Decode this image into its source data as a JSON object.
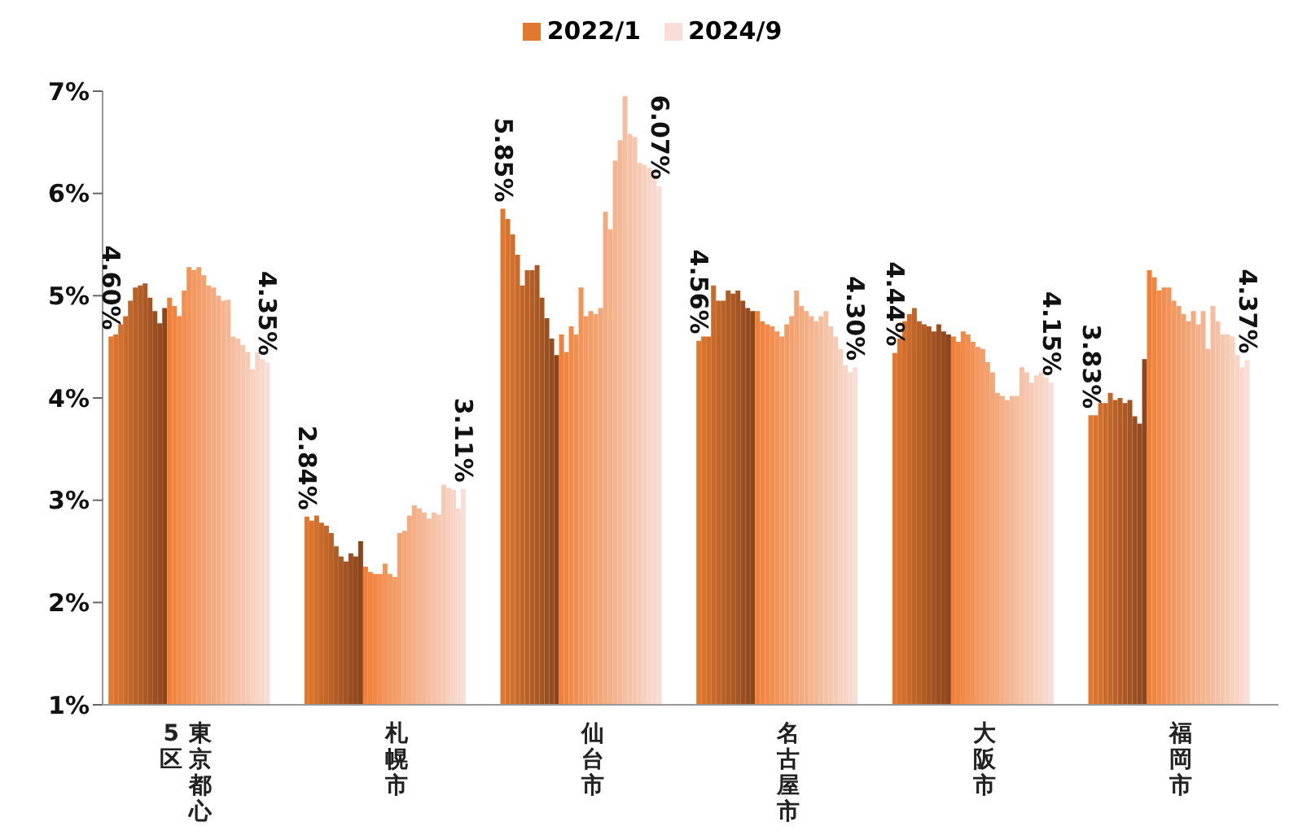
{
  "chart_data": {
    "type": "bar",
    "categories": [
      "東京都心5区",
      "札幌市",
      "仙台市",
      "名古屋市",
      "大阪市",
      "福岡市"
    ],
    "ylim": [
      1,
      7
    ],
    "yticks": [
      {
        "value": 1,
        "label": "1%"
      },
      {
        "value": 2,
        "label": "2%"
      },
      {
        "value": 3,
        "label": "3%"
      },
      {
        "value": 4,
        "label": "4%"
      },
      {
        "value": 5,
        "label": "5%"
      },
      {
        "value": 6,
        "label": "6%"
      },
      {
        "value": 7,
        "label": "7%"
      }
    ],
    "legend": "top",
    "series": [
      {
        "name": "2022/1",
        "color": "#e07830",
        "values": [
          4.6,
          2.84,
          5.85,
          4.56,
          4.44,
          3.83
        ],
        "value_labels": [
          "4.60%",
          "2.84%",
          "5.85%",
          "4.56%",
          "4.44%",
          "3.83%"
        ]
      },
      {
        "color": "#d8732e",
        "values": [
          4.62,
          2.8,
          5.75,
          4.6,
          4.58,
          3.83
        ]
      },
      {
        "color": "#d16f2c",
        "values": [
          4.72,
          2.85,
          5.6,
          4.6,
          4.75,
          3.95
        ]
      },
      {
        "color": "#c96a2b",
        "values": [
          4.8,
          2.78,
          5.4,
          5.1,
          4.82,
          3.95
        ]
      },
      {
        "color": "#c16629",
        "values": [
          4.95,
          2.75,
          5.1,
          4.95,
          4.88,
          4.05
        ]
      },
      {
        "color": "#ba6128",
        "values": [
          5.08,
          2.68,
          5.25,
          4.95,
          4.75,
          3.98
        ]
      },
      {
        "color": "#b25d26",
        "values": [
          5.1,
          2.55,
          5.25,
          5.05,
          4.72,
          4.0
        ]
      },
      {
        "color": "#ab5824",
        "values": [
          5.12,
          2.45,
          5.3,
          5.02,
          4.7,
          3.95
        ]
      },
      {
        "color": "#a35423",
        "values": [
          4.98,
          2.4,
          4.98,
          5.05,
          4.65,
          3.98
        ]
      },
      {
        "color": "#9b4f21",
        "values": [
          4.85,
          2.48,
          4.78,
          4.95,
          4.72,
          3.82
        ]
      },
      {
        "color": "#944b20",
        "values": [
          4.73,
          2.45,
          4.58,
          4.88,
          4.65,
          3.75
        ]
      },
      {
        "color": "#8c461e",
        "values": [
          4.88,
          2.6,
          4.42,
          4.85,
          4.62,
          4.38
        ]
      },
      {
        "color": "#f08038",
        "values": [
          4.98,
          2.35,
          4.62,
          4.85,
          4.6,
          5.25
        ]
      },
      {
        "color": "#f08540",
        "values": [
          4.9,
          2.3,
          4.45,
          4.75,
          4.55,
          5.18
        ]
      },
      {
        "color": "#f18948",
        "values": [
          4.8,
          2.28,
          4.7,
          4.72,
          4.65,
          5.05
        ]
      },
      {
        "color": "#f18e50",
        "values": [
          5.05,
          2.28,
          4.62,
          4.7,
          4.62,
          5.08
        ]
      },
      {
        "color": "#f29358",
        "values": [
          5.28,
          2.38,
          5.08,
          4.65,
          4.55,
          5.08
        ]
      },
      {
        "color": "#f29860",
        "values": [
          5.25,
          2.28,
          4.8,
          4.6,
          4.5,
          4.95
        ]
      },
      {
        "color": "#f29c67",
        "values": [
          5.28,
          2.25,
          4.85,
          4.72,
          4.48,
          4.9
        ]
      },
      {
        "color": "#f3a16f",
        "values": [
          5.2,
          2.68,
          4.82,
          4.8,
          4.35,
          4.82
        ]
      },
      {
        "color": "#f3a677",
        "values": [
          5.1,
          2.7,
          4.88,
          5.05,
          4.25,
          4.75
        ]
      },
      {
        "color": "#f4aa7f",
        "values": [
          5.08,
          2.85,
          5.82,
          4.9,
          4.05,
          4.85
        ]
      },
      {
        "color": "#f4af87",
        "values": [
          5.0,
          2.95,
          5.65,
          4.85,
          4.02,
          4.72
        ]
      },
      {
        "color": "#f4b48f",
        "values": [
          4.95,
          2.92,
          6.32,
          4.8,
          3.98,
          4.85
        ]
      },
      {
        "color": "#f5b897",
        "values": [
          4.96,
          2.88,
          6.52,
          4.75,
          4.02,
          4.48
        ]
      },
      {
        "color": "#f5bd9f",
        "values": [
          4.6,
          2.82,
          6.95,
          4.8,
          4.02,
          4.9
        ]
      },
      {
        "color": "#f6c2a7",
        "values": [
          4.58,
          2.88,
          6.58,
          4.85,
          4.3,
          4.75
        ]
      },
      {
        "color": "#f6c6ae",
        "values": [
          4.52,
          2.86,
          6.55,
          4.7,
          4.25,
          4.62
        ]
      },
      {
        "color": "#f6cbb6",
        "values": [
          4.45,
          3.15,
          6.3,
          4.6,
          4.15,
          4.62
        ]
      },
      {
        "color": "#f7d0be",
        "values": [
          4.28,
          3.12,
          6.28,
          4.48,
          4.22,
          4.6
        ]
      },
      {
        "color": "#f7d4c6",
        "values": [
          4.45,
          3.1,
          6.25,
          4.32,
          4.25,
          4.42
        ]
      },
      {
        "color": "#f8d9ce",
        "values": [
          4.38,
          2.92,
          6.2,
          4.25,
          4.2,
          4.3
        ]
      },
      {
        "name": "2024/9",
        "color": "#f8ded6",
        "values": [
          4.35,
          3.11,
          6.07,
          4.3,
          4.15,
          4.37
        ],
        "value_labels": [
          "4.35%",
          "3.11%",
          "6.07%",
          "4.30%",
          "4.15%",
          "4.37%"
        ]
      }
    ]
  }
}
